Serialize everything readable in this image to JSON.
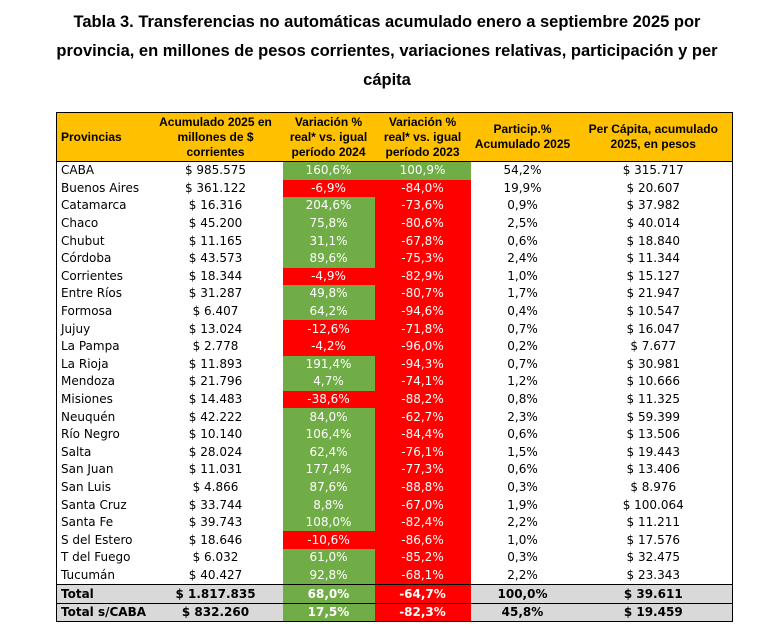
{
  "title": "Tabla 3. Transferencias no automáticas acumulado enero a septiembre 2025 por provincia, en millones de pesos corrientes, variaciones relativas, participación y per cápita",
  "colors": {
    "header": "#ffc000",
    "positive": "#70ad47",
    "negative": "#ff0000",
    "total": "#d9d9d9"
  },
  "headers": [
    "Provincias",
    "Acumulado 2025 en millones de $ corrientes",
    "Variación % real* vs. igual período 2024",
    "Variación % real* vs. igual período 2023",
    "Particip.% Acumulado 2025",
    "Per Cápita, acumulado 2025, en pesos"
  ],
  "rows": [
    [
      "CABA",
      "$ 985.575",
      "160,6%",
      "100,9%",
      "54,2%",
      "$ 315.717"
    ],
    [
      "Buenos Aires",
      "$ 361.122",
      "-6,9%",
      "-84,0%",
      "19,9%",
      "$ 20.607"
    ],
    [
      "Catamarca",
      "$ 16.316",
      "204,6%",
      "-73,6%",
      "0,9%",
      "$ 37.982"
    ],
    [
      "Chaco",
      "$ 45.200",
      "75,8%",
      "-80,6%",
      "2,5%",
      "$ 40.014"
    ],
    [
      "Chubut",
      "$ 11.165",
      "31,1%",
      "-67,8%",
      "0,6%",
      "$ 18.840"
    ],
    [
      "Córdoba",
      "$ 43.573",
      "89,6%",
      "-75,3%",
      "2,4%",
      "$ 11.344"
    ],
    [
      "Corrientes",
      "$ 18.344",
      "-4,9%",
      "-82,9%",
      "1,0%",
      "$ 15.127"
    ],
    [
      "Entre Ríos",
      "$ 31.287",
      "49,8%",
      "-80,7%",
      "1,7%",
      "$ 21.947"
    ],
    [
      "Formosa",
      "$ 6.407",
      "64,2%",
      "-94,6%",
      "0,4%",
      "$ 10.547"
    ],
    [
      "Jujuy",
      "$ 13.024",
      "-12,6%",
      "-71,8%",
      "0,7%",
      "$ 16.047"
    ],
    [
      "La Pampa",
      "$ 2.778",
      "-4,2%",
      "-96,0%",
      "0,2%",
      "$ 7.677"
    ],
    [
      "La Rioja",
      "$ 11.893",
      "191,4%",
      "-94,3%",
      "0,7%",
      "$ 30.981"
    ],
    [
      "Mendoza",
      "$ 21.796",
      "4,7%",
      "-74,1%",
      "1,2%",
      "$ 10.666"
    ],
    [
      "Misiones",
      "$ 14.483",
      "-38,6%",
      "-88,2%",
      "0,8%",
      "$ 11.325"
    ],
    [
      "Neuquén",
      "$ 42.222",
      "84,0%",
      "-62,7%",
      "2,3%",
      "$ 59.399"
    ],
    [
      "Río Negro",
      "$ 10.140",
      "106,4%",
      "-84,4%",
      "0,6%",
      "$ 13.506"
    ],
    [
      "Salta",
      "$ 28.024",
      "62,4%",
      "-76,1%",
      "1,5%",
      "$ 19.443"
    ],
    [
      "San Juan",
      "$ 11.031",
      "177,4%",
      "-77,3%",
      "0,6%",
      "$ 13.406"
    ],
    [
      "San Luis",
      "$ 4.866",
      "87,6%",
      "-88,8%",
      "0,3%",
      "$ 8.976"
    ],
    [
      "Santa Cruz",
      "$ 33.744",
      "8,8%",
      "-67,0%",
      "1,9%",
      "$ 100.064"
    ],
    [
      "Santa Fe",
      "$ 39.743",
      "108,0%",
      "-82,4%",
      "2,2%",
      "$ 11.211"
    ],
    [
      "S del Estero",
      "$ 18.646",
      "-10,6%",
      "-86,6%",
      "1,0%",
      "$ 17.576"
    ],
    [
      "T del Fuego",
      "$ 6.032",
      "61,0%",
      "-85,2%",
      "0,3%",
      "$ 32.475"
    ],
    [
      "Tucumán",
      "$ 40.427",
      "92,8%",
      "-68,1%",
      "2,2%",
      "$ 23.343"
    ]
  ],
  "totals": [
    [
      "Total",
      "$ 1.817.835",
      "68,0%",
      "-64,7%",
      "100,0%",
      "$ 39.611"
    ],
    [
      "Total s/CABA",
      "$ 832.260",
      "17,5%",
      "-82,3%",
      "45,8%",
      "$ 19.459"
    ]
  ]
}
